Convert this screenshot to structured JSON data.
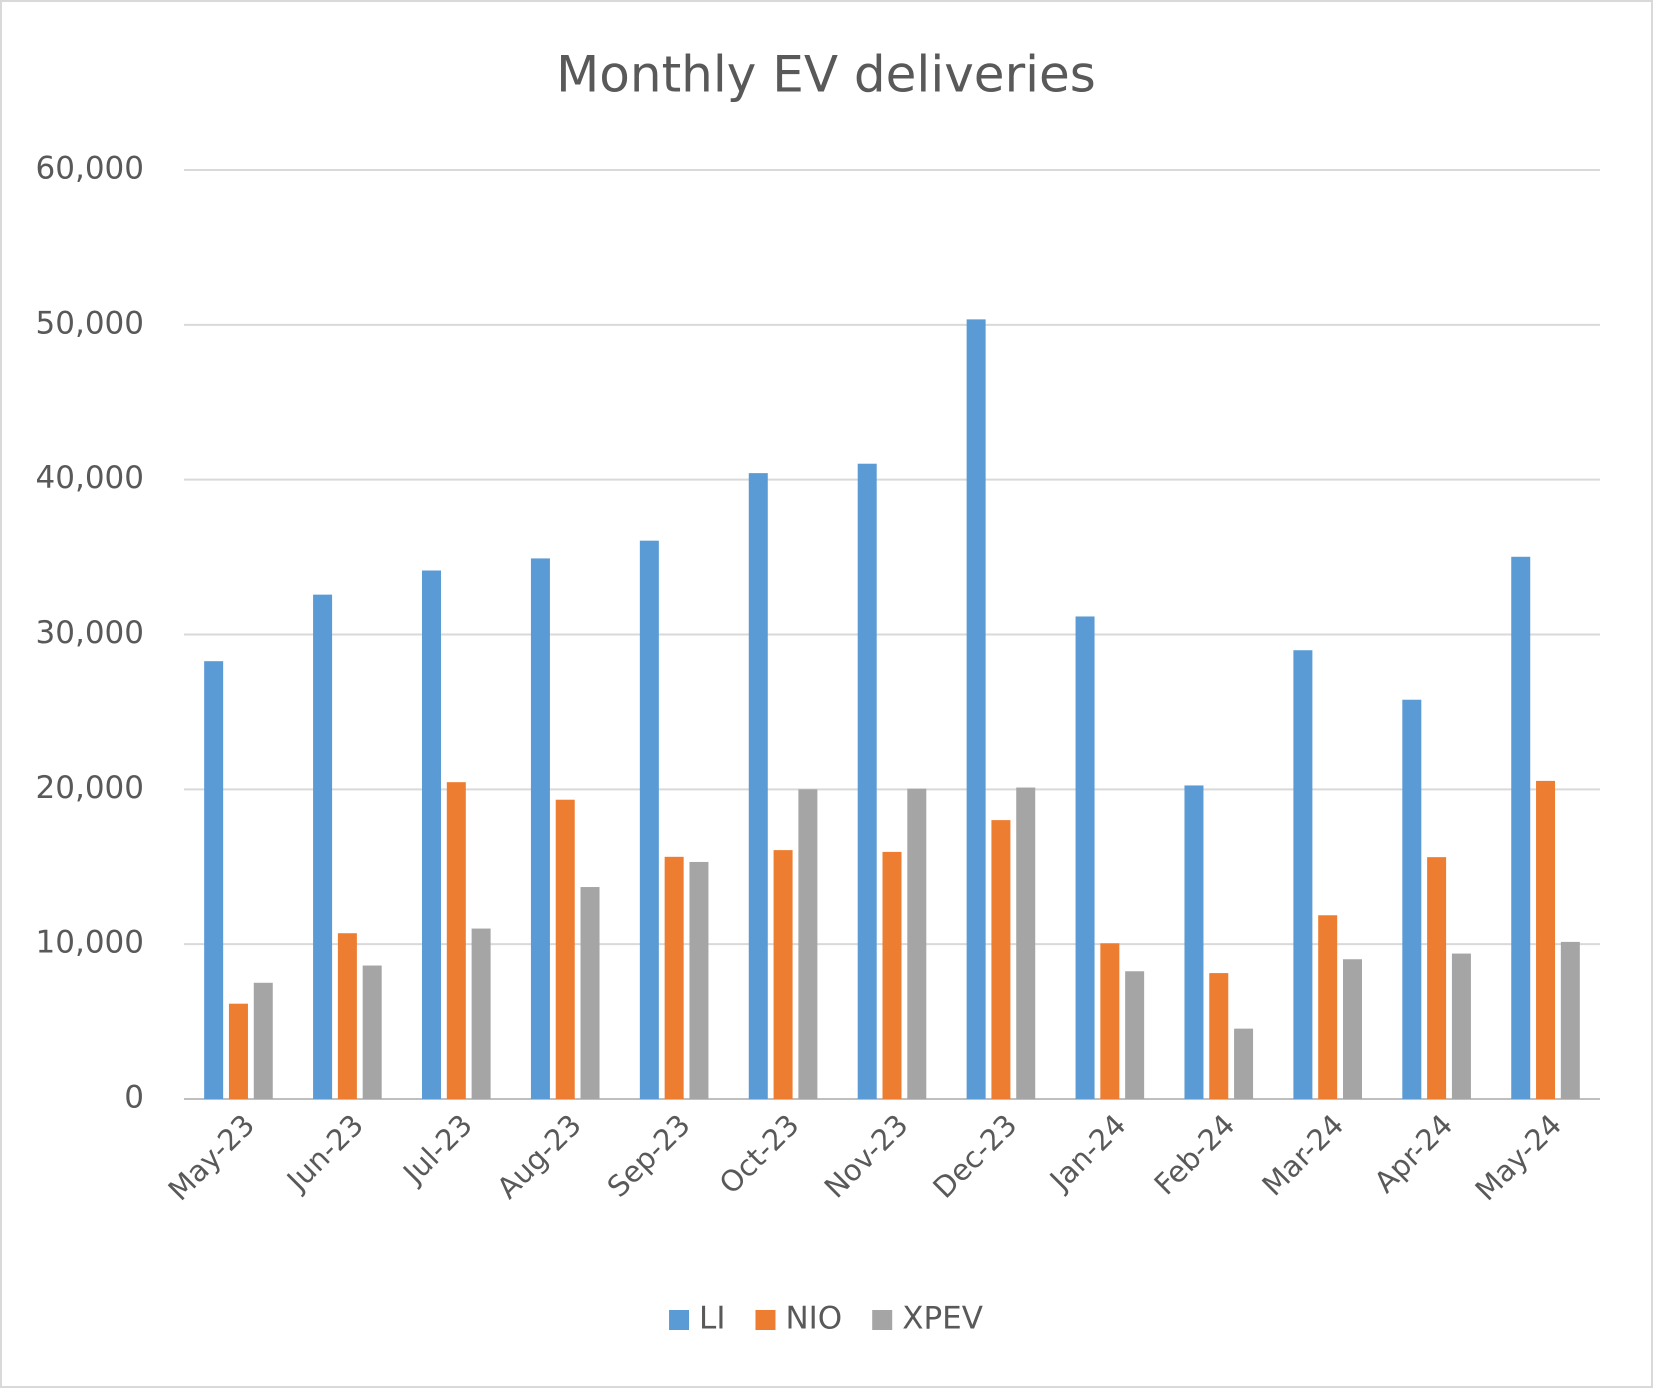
{
  "chart_data": {
    "type": "bar",
    "title": "Monthly EV deliveries",
    "categories": [
      "May-23",
      "Jun-23",
      "Jul-23",
      "Aug-23",
      "Sep-23",
      "Oct-23",
      "Nov-23",
      "Dec-23",
      "Jan-24",
      "Feb-24",
      "Mar-24",
      "Apr-24",
      "May-24"
    ],
    "series": [
      {
        "name": "LI",
        "color": "#5b9bd5",
        "values": [
          28277,
          32575,
          34134,
          34914,
          36060,
          40422,
          41030,
          50353,
          31165,
          20251,
          28984,
          25787,
          35020
        ]
      },
      {
        "name": "NIO",
        "color": "#ed7d31",
        "values": [
          6155,
          10707,
          20462,
          19329,
          15641,
          16074,
          15959,
          18012,
          10055,
          8132,
          11866,
          15620,
          20544
        ]
      },
      {
        "name": "XPEV",
        "color": "#a5a5a5",
        "values": [
          7506,
          8620,
          11008,
          13690,
          15310,
          20002,
          20041,
          20115,
          8250,
          4545,
          9026,
          9393,
          10146
        ]
      }
    ],
    "ylim": [
      0,
      60000
    ],
    "yticks": [
      0,
      {
        "value": 10000,
        "label": "10,000"
      },
      {
        "value": 20000,
        "label": "20,000"
      },
      {
        "value": 30000,
        "label": "30,000"
      },
      {
        "value": 40000,
        "label": "40,000"
      },
      {
        "value": 50000,
        "label": "50,000"
      },
      {
        "value": 60000,
        "label": "60,000"
      }
    ],
    "grid": true,
    "legend": "bottom"
  }
}
